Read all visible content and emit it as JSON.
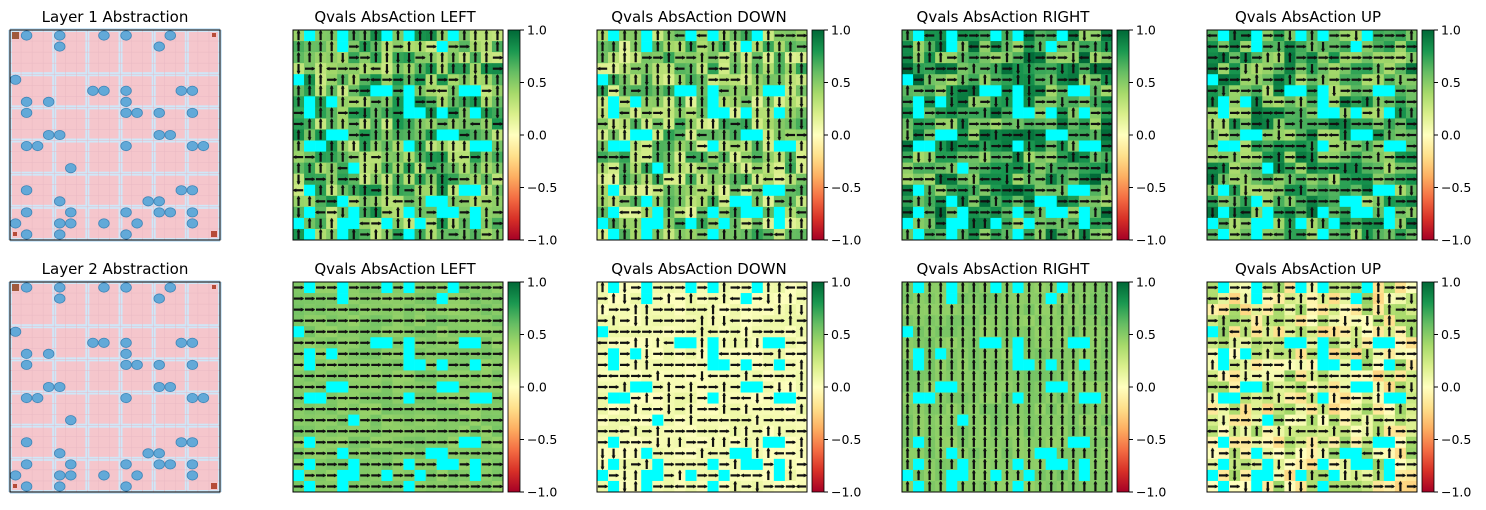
{
  "figure": {
    "rows": 2,
    "columns": 5,
    "colormap": "RdYlGn",
    "hole_color": "#00ffff",
    "grid_size": 19,
    "map_colors": {
      "room": "#f5c6cc",
      "wall": "#cfe7f8",
      "hole": "#62a9d8",
      "start": "#a05a3c",
      "goal": "#b54b38"
    }
  },
  "chart_data": [
    {
      "type": "heatmap",
      "panel": "map",
      "title": "Layer 1 Abstraction",
      "grid": 19,
      "holes": [
        [
          1,
          0
        ],
        [
          4,
          0
        ],
        [
          8,
          0
        ],
        [
          10,
          0
        ],
        [
          14,
          0
        ],
        [
          4,
          1
        ],
        [
          13,
          1
        ],
        [
          0,
          4
        ],
        [
          7,
          5
        ],
        [
          8,
          5
        ],
        [
          10,
          5
        ],
        [
          15,
          5
        ],
        [
          16,
          5
        ],
        [
          1,
          6
        ],
        [
          3,
          6
        ],
        [
          10,
          6
        ],
        [
          1,
          7
        ],
        [
          10,
          7
        ],
        [
          11,
          7
        ],
        [
          13,
          7
        ],
        [
          16,
          7
        ],
        [
          3,
          9
        ],
        [
          4,
          9
        ],
        [
          13,
          9
        ],
        [
          14,
          9
        ],
        [
          1,
          10
        ],
        [
          2,
          10
        ],
        [
          10,
          10
        ],
        [
          16,
          10
        ],
        [
          17,
          10
        ],
        [
          5,
          12
        ],
        [
          1,
          14
        ],
        [
          15,
          14
        ],
        [
          16,
          14
        ],
        [
          4,
          15
        ],
        [
          12,
          15
        ],
        [
          13,
          15
        ],
        [
          1,
          16
        ],
        [
          5,
          16
        ],
        [
          10,
          16
        ],
        [
          13,
          16
        ],
        [
          14,
          16
        ],
        [
          16,
          16
        ],
        [
          0,
          17
        ],
        [
          4,
          17
        ],
        [
          5,
          17
        ],
        [
          8,
          17
        ],
        [
          11,
          17
        ],
        [
          16,
          17
        ],
        [
          1,
          18
        ],
        [
          4,
          18
        ],
        [
          10,
          18
        ]
      ]
    },
    {
      "type": "heatmap",
      "panel": "qvals",
      "title": "Qvals AbsAction LEFT",
      "vmin": -1.0,
      "vmax": 1.0,
      "row": 0,
      "base": 0.55,
      "variation": 0.3,
      "arrow_mode": "mixed",
      "arrow_bias": "up",
      "colorbar_ticks": [
        "1.0",
        "0.5",
        "0.0",
        "−0.5",
        "−1.0"
      ]
    },
    {
      "type": "heatmap",
      "panel": "qvals",
      "title": "Qvals AbsAction DOWN",
      "vmin": -1.0,
      "vmax": 1.0,
      "row": 0,
      "base": 0.45,
      "variation": 0.3,
      "arrow_mode": "mixed",
      "arrow_bias": "up",
      "colorbar_ticks": [
        "1.0",
        "0.5",
        "0.0",
        "−0.5",
        "−1.0"
      ]
    },
    {
      "type": "heatmap",
      "panel": "qvals",
      "title": "Qvals AbsAction RIGHT",
      "vmin": -1.0,
      "vmax": 1.0,
      "row": 0,
      "base": 0.7,
      "variation": 0.3,
      "arrow_mode": "mixed",
      "arrow_bias": "right",
      "colorbar_ticks": [
        "1.0",
        "0.5",
        "0.0",
        "−0.5",
        "−1.0"
      ]
    },
    {
      "type": "heatmap",
      "panel": "qvals",
      "title": "Qvals AbsAction UP",
      "vmin": -1.0,
      "vmax": 1.0,
      "row": 0,
      "base": 0.65,
      "variation": 0.3,
      "arrow_mode": "mixed",
      "arrow_bias": "right",
      "colorbar_ticks": [
        "1.0",
        "0.5",
        "0.0",
        "−0.5",
        "−1.0"
      ]
    },
    {
      "type": "heatmap",
      "panel": "map",
      "title": "Layer 2 Abstraction",
      "grid": 19,
      "holes": [
        [
          1,
          0
        ],
        [
          4,
          0
        ],
        [
          8,
          0
        ],
        [
          10,
          0
        ],
        [
          14,
          0
        ],
        [
          4,
          1
        ],
        [
          13,
          1
        ],
        [
          0,
          4
        ],
        [
          7,
          5
        ],
        [
          8,
          5
        ],
        [
          10,
          5
        ],
        [
          15,
          5
        ],
        [
          16,
          5
        ],
        [
          1,
          6
        ],
        [
          3,
          6
        ],
        [
          10,
          6
        ],
        [
          1,
          7
        ],
        [
          10,
          7
        ],
        [
          11,
          7
        ],
        [
          13,
          7
        ],
        [
          16,
          7
        ],
        [
          3,
          9
        ],
        [
          4,
          9
        ],
        [
          13,
          9
        ],
        [
          14,
          9
        ],
        [
          1,
          10
        ],
        [
          2,
          10
        ],
        [
          10,
          10
        ],
        [
          16,
          10
        ],
        [
          17,
          10
        ],
        [
          5,
          12
        ],
        [
          1,
          14
        ],
        [
          15,
          14
        ],
        [
          16,
          14
        ],
        [
          4,
          15
        ],
        [
          12,
          15
        ],
        [
          13,
          15
        ],
        [
          1,
          16
        ],
        [
          5,
          16
        ],
        [
          10,
          16
        ],
        [
          13,
          16
        ],
        [
          14,
          16
        ],
        [
          16,
          16
        ],
        [
          0,
          17
        ],
        [
          4,
          17
        ],
        [
          5,
          17
        ],
        [
          8,
          17
        ],
        [
          11,
          17
        ],
        [
          16,
          17
        ],
        [
          1,
          18
        ],
        [
          4,
          18
        ],
        [
          10,
          18
        ]
      ]
    },
    {
      "type": "heatmap",
      "panel": "qvals",
      "title": "Qvals AbsAction LEFT",
      "vmin": -1.0,
      "vmax": 1.0,
      "row": 1,
      "base": 0.5,
      "variation": 0.05,
      "arrow_mode": "right",
      "arrow_bias": "right",
      "colorbar_ticks": [
        "1.0",
        "0.5",
        "0.0",
        "−0.5",
        "−1.0"
      ]
    },
    {
      "type": "heatmap",
      "panel": "qvals",
      "title": "Qvals AbsAction DOWN",
      "vmin": -1.0,
      "vmax": 1.0,
      "row": 1,
      "base": 0.05,
      "variation": 0.05,
      "arrow_mode": "mixed",
      "arrow_bias": "right",
      "colorbar_ticks": [
        "1.0",
        "0.5",
        "0.0",
        "−0.5",
        "−1.0"
      ]
    },
    {
      "type": "heatmap",
      "panel": "qvals",
      "title": "Qvals AbsAction RIGHT",
      "vmin": -1.0,
      "vmax": 1.0,
      "row": 1,
      "base": 0.5,
      "variation": 0.05,
      "arrow_mode": "up",
      "arrow_bias": "up",
      "colorbar_ticks": [
        "1.0",
        "0.5",
        "0.0",
        "−0.5",
        "−1.0"
      ]
    },
    {
      "type": "heatmap",
      "panel": "qvals",
      "title": "Qvals AbsAction UP",
      "vmin": -1.0,
      "vmax": 1.0,
      "row": 1,
      "base": 0.1,
      "variation": 0.35,
      "arrow_mode": "mixed",
      "arrow_bias": "right",
      "colorbar_ticks": [
        "1.0",
        "0.5",
        "0.0",
        "−0.5",
        "−1.0"
      ]
    }
  ]
}
